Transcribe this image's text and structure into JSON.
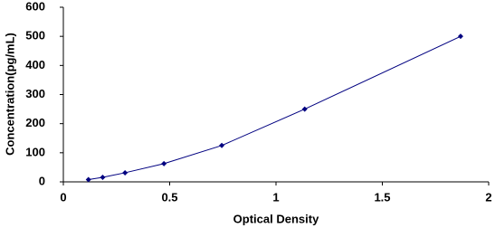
{
  "chart_data": {
    "type": "scatter",
    "xlabel": "Optical Density",
    "ylabel": "Concentration(pg/mL)",
    "series": [
      {
        "color": "#000080",
        "line": true,
        "marker": "diamond",
        "x": [
          0.118,
          0.185,
          0.29,
          0.473,
          0.745,
          1.135,
          1.868
        ],
        "values": [
          7.8,
          15.6,
          31.25,
          62.5,
          125,
          250,
          500
        ]
      }
    ],
    "xlim": [
      0,
      2
    ],
    "xticks": [
      0,
      0.5,
      1,
      1.5,
      2
    ],
    "ylim": [
      0,
      600
    ],
    "yticks": [
      0,
      100,
      200,
      300,
      400,
      500,
      600
    ],
    "grid": false
  }
}
